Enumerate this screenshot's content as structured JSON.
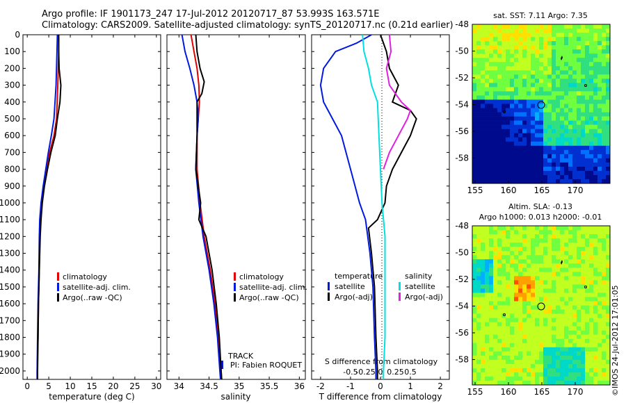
{
  "header": {
    "line1": "Argo profile: IF 1901173_247 17-Jul-2012 20120717_87 53.993S 163.571E",
    "line2": "Climatology: CARS2009. Satellite-adjusted climatology: synTS_20120717.nc (0.21d earlier)"
  },
  "colors": {
    "red": "#e00000",
    "blue": "#0018e0",
    "black": "#000000",
    "cyan": "#00e0e0",
    "magenta": "#e020e0"
  },
  "chart_data": [
    {
      "id": "temperature",
      "type": "line",
      "xlabel": "temperature (deg C)",
      "xlim": [
        -1,
        31
      ],
      "ylim": [
        0,
        2050
      ],
      "x_ticks": [
        0,
        5,
        10,
        15,
        20,
        25,
        30
      ],
      "y_ticks": [
        0,
        100,
        200,
        300,
        400,
        500,
        600,
        700,
        800,
        900,
        1000,
        1100,
        1200,
        1300,
        1400,
        1500,
        1600,
        1700,
        1800,
        1900,
        2000
      ],
      "legend": [
        "climatology",
        "satellite-adj. clim.",
        "Argo(..raw -QC)"
      ],
      "series": [
        {
          "name": "climatology",
          "color": "red",
          "points": [
            [
              7.3,
              0
            ],
            [
              7.3,
              100
            ],
            [
              7.1,
              300
            ],
            [
              6.8,
              500
            ],
            [
              6.2,
              600
            ],
            [
              5.2,
              700
            ],
            [
              4.5,
              800
            ],
            [
              3.8,
              900
            ],
            [
              3.3,
              1000
            ],
            [
              3,
              1100
            ],
            [
              2.9,
              1200
            ],
            [
              2.8,
              1400
            ],
            [
              2.6,
              1600
            ],
            [
              2.5,
              1800
            ],
            [
              2.3,
              2000
            ],
            [
              2.3,
              2050
            ]
          ]
        },
        {
          "name": "satellite-adj. clim.",
          "color": "blue",
          "points": [
            [
              7.0,
              0
            ],
            [
              6.9,
              100
            ],
            [
              6.7,
              300
            ],
            [
              6.2,
              500
            ],
            [
              5.6,
              600
            ],
            [
              4.9,
              700
            ],
            [
              4.3,
              800
            ],
            [
              3.7,
              900
            ],
            [
              3.2,
              1000
            ],
            [
              2.9,
              1100
            ],
            [
              2.8,
              1200
            ],
            [
              2.7,
              1400
            ],
            [
              2.5,
              1600
            ],
            [
              2.4,
              1800
            ],
            [
              2.3,
              2000
            ],
            [
              2.3,
              2050
            ]
          ]
        },
        {
          "name": "Argo(..raw -QC)",
          "color": "black",
          "points": [
            [
              7.3,
              0
            ],
            [
              7.3,
              100
            ],
            [
              7.4,
              200
            ],
            [
              7.8,
              300
            ],
            [
              7.6,
              400
            ],
            [
              7.0,
              500
            ],
            [
              6.5,
              600
            ],
            [
              5.5,
              700
            ],
            [
              4.7,
              800
            ],
            [
              4.0,
              900
            ],
            [
              3.5,
              1000
            ],
            [
              3.2,
              1100
            ],
            [
              3.0,
              1200
            ],
            [
              2.8,
              1400
            ],
            [
              2.6,
              1600
            ],
            [
              2.5,
              1800
            ],
            [
              2.4,
              2000
            ],
            [
              2.4,
              2050
            ]
          ]
        }
      ]
    },
    {
      "id": "salinity",
      "type": "line",
      "xlabel": "salinity",
      "xlim": [
        33.8,
        36.1
      ],
      "ylim": [
        0,
        2050
      ],
      "x_ticks": [
        34,
        34.5,
        35,
        35.5,
        36
      ],
      "x_tick_labels": [
        "34",
        "34.5",
        "35",
        "35.5",
        "36"
      ],
      "legend": [
        "climatology",
        "satellite-adj. clim.",
        "Argo(..raw -QC)"
      ],
      "series": [
        {
          "name": "climatology",
          "color": "red",
          "points": [
            [
              34.2,
              0
            ],
            [
              34.25,
              100
            ],
            [
              34.3,
              200
            ],
            [
              34.33,
              300
            ],
            [
              34.34,
              400
            ],
            [
              34.3,
              600
            ],
            [
              34.3,
              800
            ],
            [
              34.35,
              1000
            ],
            [
              34.42,
              1200
            ],
            [
              34.52,
              1400
            ],
            [
              34.6,
              1600
            ],
            [
              34.66,
              1800
            ],
            [
              34.7,
              2000
            ],
            [
              34.71,
              2050
            ]
          ]
        },
        {
          "name": "satellite-adj. clim.",
          "color": "blue",
          "points": [
            [
              34.05,
              0
            ],
            [
              34.1,
              100
            ],
            [
              34.18,
              200
            ],
            [
              34.25,
              300
            ],
            [
              34.3,
              400
            ],
            [
              34.32,
              500
            ],
            [
              34.3,
              600
            ],
            [
              34.28,
              800
            ],
            [
              34.33,
              1000
            ],
            [
              34.4,
              1200
            ],
            [
              34.5,
              1400
            ],
            [
              34.58,
              1600
            ],
            [
              34.64,
              1800
            ],
            [
              34.68,
              2000
            ],
            [
              34.69,
              2050
            ]
          ]
        },
        {
          "name": "Argo(..raw -QC)",
          "color": "black",
          "points": [
            [
              34.28,
              0
            ],
            [
              34.3,
              100
            ],
            [
              34.35,
              200
            ],
            [
              34.42,
              280
            ],
            [
              34.38,
              350
            ],
            [
              34.3,
              400
            ],
            [
              34.3,
              600
            ],
            [
              34.28,
              800
            ],
            [
              34.36,
              1000
            ],
            [
              34.33,
              1100
            ],
            [
              34.45,
              1200
            ],
            [
              34.55,
              1400
            ],
            [
              34.62,
              1600
            ],
            [
              34.67,
              1800
            ],
            [
              34.7,
              2000
            ],
            [
              34.71,
              2050
            ]
          ]
        }
      ],
      "track_label": "TRACK",
      "pi_label": "PI: Fabien ROQUET"
    },
    {
      "id": "difference",
      "type": "line",
      "xlabel": "T difference from climatology",
      "top_axis_label": "S difference from climatology",
      "xlim": [
        -2.3,
        2.3
      ],
      "ylim": [
        0,
        2050
      ],
      "x_ticks": [
        -2,
        -1,
        0,
        1,
        2
      ],
      "s_ticks": [
        -0.5,
        -0.25,
        0,
        0.25,
        0.5
      ],
      "s_tick_labels": [
        "-0.5",
        "-0.25",
        "0",
        "0.25",
        "0.5"
      ],
      "legend_left_header": "temperature",
      "legend_right_header": "salinity",
      "legend": [
        "satellite",
        "Argo(-adj)",
        "satellite",
        "Argo(-adj)"
      ],
      "series": [
        {
          "name": "satellite",
          "group": "temperature",
          "color": "blue",
          "points": [
            [
              -0.3,
              0
            ],
            [
              -0.8,
              50
            ],
            [
              -1.5,
              100
            ],
            [
              -1.9,
              200
            ],
            [
              -2.0,
              300
            ],
            [
              -1.9,
              400
            ],
            [
              -1.6,
              500
            ],
            [
              -1.3,
              600
            ],
            [
              -1.0,
              800
            ],
            [
              -0.7,
              1000
            ],
            [
              -0.5,
              1100
            ],
            [
              -0.35,
              1300
            ],
            [
              -0.25,
              1500
            ],
            [
              -0.2,
              1800
            ],
            [
              -0.15,
              2000
            ],
            [
              -0.15,
              2050
            ]
          ]
        },
        {
          "name": "Argo(-adj)",
          "group": "temperature",
          "color": "black",
          "points": [
            [
              0,
              0
            ],
            [
              0.2,
              100
            ],
            [
              0.3,
              200
            ],
            [
              0.6,
              300
            ],
            [
              0.4,
              400
            ],
            [
              1.0,
              450
            ],
            [
              1.2,
              500
            ],
            [
              1.0,
              600
            ],
            [
              0.7,
              700
            ],
            [
              0.4,
              800
            ],
            [
              0.2,
              900
            ],
            [
              0.15,
              1000
            ],
            [
              -0.1,
              1100
            ],
            [
              -0.4,
              1150
            ],
            [
              -0.3,
              1300
            ],
            [
              -0.2,
              1500
            ],
            [
              -0.15,
              1800
            ],
            [
              -0.1,
              2000
            ],
            [
              -0.1,
              2050
            ]
          ]
        },
        {
          "name": "satellite",
          "group": "salinity",
          "color": "cyan",
          "points": [
            [
              -0.6,
              0
            ],
            [
              -0.55,
              100
            ],
            [
              -0.4,
              200
            ],
            [
              -0.3,
              300
            ],
            [
              -0.1,
              400
            ],
            [
              -0.05,
              600
            ],
            [
              0,
              800
            ],
            [
              0.05,
              1000
            ],
            [
              0.15,
              1200
            ],
            [
              0.15,
              1400
            ],
            [
              0.15,
              1600
            ],
            [
              0.15,
              1800
            ],
            [
              0.1,
              2000
            ],
            [
              0.1,
              2050
            ]
          ]
        },
        {
          "name": "Argo(-adj)",
          "group": "salinity",
          "color": "magenta",
          "points": [
            [
              0.3,
              0
            ],
            [
              0.35,
              100
            ],
            [
              0.2,
              200
            ],
            [
              0.3,
              300
            ],
            [
              0.7,
              400
            ],
            [
              1.0,
              450
            ],
            [
              0.9,
              500
            ],
            [
              0.6,
              600
            ],
            [
              0.3,
              700
            ],
            [
              0.1,
              800
            ]
          ]
        }
      ]
    }
  ],
  "maps": {
    "sst": {
      "title": "sat. SST: 7.11 Argo: 7.35",
      "x_ticks": [
        "155",
        "160",
        "165",
        "170"
      ],
      "y_ticks": [
        "-48",
        "-50",
        "-52",
        "-54",
        "-56",
        "-58"
      ]
    },
    "sla": {
      "title_line1": "Altim. SLA: -0.13",
      "title_line2": "Argo h1000: 0.013 h2000: -0.01",
      "x_ticks": [
        "155",
        "160",
        "165",
        "170"
      ],
      "y_ticks": [
        "-48",
        "-50",
        "-52",
        "-54",
        "-56",
        "-58"
      ]
    }
  },
  "footer_stamp": "©IMOS 24-Jul-2012 17:01:05"
}
